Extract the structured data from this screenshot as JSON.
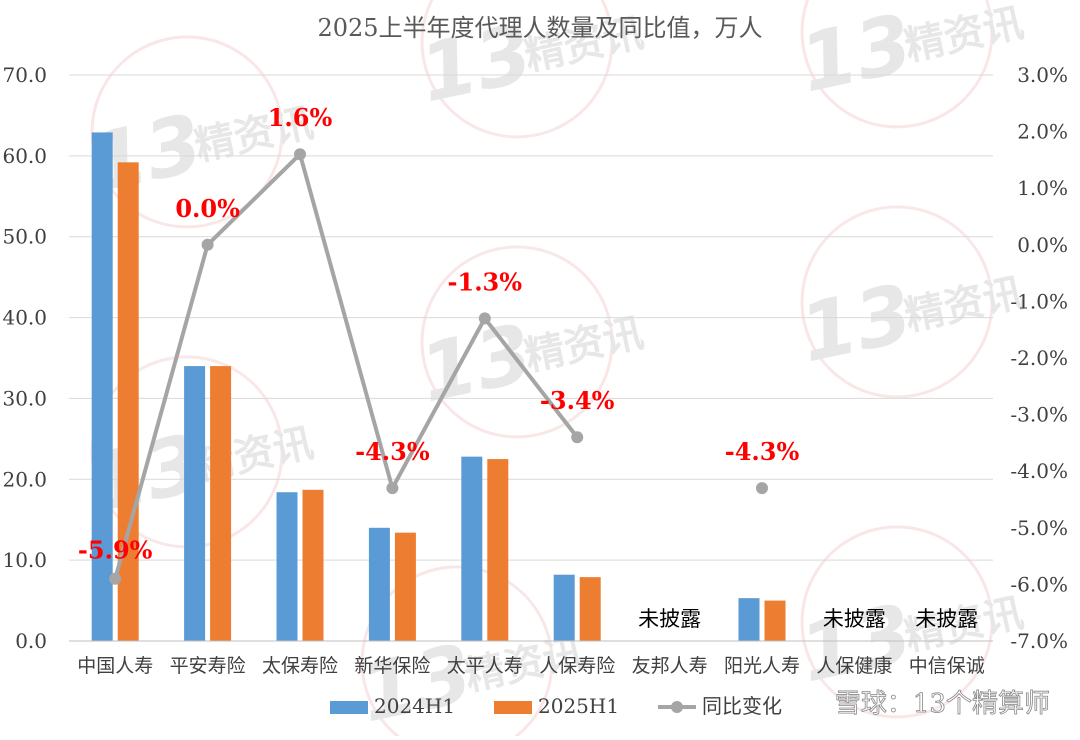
{
  "chart_data": {
    "type": "bar",
    "title": "2025上半年度代理人数量及同比值，万人",
    "categories": [
      "中国人寿",
      "平安寿险",
      "太保寿险",
      "新华保险",
      "太平人寿",
      "人保寿险",
      "友邦人寿",
      "阳光人寿",
      "人保健康",
      "中信保诚"
    ],
    "series": [
      {
        "name": "2024H1",
        "kind": "bar",
        "axis": "left",
        "color": "#5b9bd5",
        "values": [
          62.9,
          34.0,
          18.4,
          14.0,
          22.8,
          8.2,
          null,
          5.3,
          null,
          null
        ]
      },
      {
        "name": "2025H1",
        "kind": "bar",
        "axis": "left",
        "color": "#ed7d31",
        "values": [
          59.2,
          34.0,
          18.7,
          13.4,
          22.5,
          7.9,
          null,
          5.0,
          null,
          null
        ]
      },
      {
        "name": "同比变化",
        "kind": "line",
        "axis": "right",
        "color": "#a5a5a5",
        "values": [
          -5.9,
          0.0,
          1.6,
          -4.3,
          -1.3,
          -3.4,
          null,
          -4.3,
          null,
          null
        ],
        "labels": [
          "-5.9%",
          "0.0%",
          "1.6%",
          "-4.3%",
          "-1.3%",
          "-3.4%",
          "",
          "-4.3%",
          "",
          ""
        ],
        "label_color": "#ff0000"
      }
    ],
    "undisclosed_label": "未披露",
    "undisclosed_categories": [
      "友邦人寿",
      "人保健康",
      "中信保诚"
    ],
    "y_left": {
      "ylim": [
        0,
        70
      ],
      "ticks": [
        "0.0",
        "10.0",
        "20.0",
        "30.0",
        "40.0",
        "50.0",
        "60.0",
        "70.0"
      ]
    },
    "y_right": {
      "ylim": [
        -7,
        3
      ],
      "ticks": [
        "3.0%",
        "2.0%",
        "1.0%",
        "0.0%",
        "-1.0%",
        "-2.0%",
        "-3.0%",
        "-4.0%",
        "-5.0%",
        "-6.0%",
        "-7.0%"
      ]
    },
    "grid": true,
    "legend_position": "bottom",
    "xlabel": "",
    "ylabel": ""
  },
  "watermark": {
    "text": "精资讯",
    "number": "13"
  },
  "footer": {
    "source_text": "雪球：13个精算师"
  }
}
